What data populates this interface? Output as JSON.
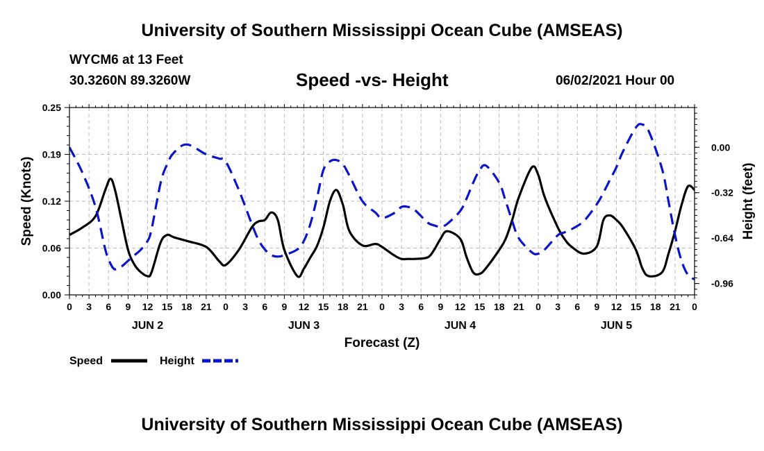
{
  "header": {
    "title": "University of Southern Mississippi Ocean Cube (AMSEAS)",
    "station": "WYCM6 at 13 Feet",
    "coordinates": "30.3260N  89.3260W",
    "subtitle": "Speed -vs- Height",
    "datetime": "06/02/2021 Hour 00"
  },
  "footer": {
    "title": "University of Southern Mississippi Ocean Cube (AMSEAS)"
  },
  "colors": {
    "speed": "#000000",
    "height": "#0a14c8",
    "grid": "#bbbbbb"
  },
  "chart_data": {
    "type": "line",
    "xlabel": "Forecast (Z)",
    "ylabel_left": "Speed (Knots)",
    "ylabel_right": "Height (feet)",
    "x_range_hours": [
      0,
      96
    ],
    "x_tick_labels": [
      "0",
      "3",
      "6",
      "9",
      "12",
      "15",
      "18",
      "21",
      "0",
      "3",
      "6",
      "9",
      "12",
      "15",
      "18",
      "21",
      "0",
      "3",
      "6",
      "9",
      "12",
      "15",
      "18",
      "21",
      "0",
      "3",
      "6",
      "9",
      "12",
      "15",
      "18",
      "21",
      "0"
    ],
    "day_labels": [
      {
        "label": "JUN 2",
        "hour": 12
      },
      {
        "label": "JUN 3",
        "hour": 36
      },
      {
        "label": "JUN 4",
        "hour": 60
      },
      {
        "label": "JUN 5",
        "hour": 84
      }
    ],
    "y_left_range": [
      0,
      0.25
    ],
    "y_left_ticks": [
      "0.25",
      "0.19",
      "0.12",
      "0.06",
      "0.00"
    ],
    "y_right_range": [
      -1.04,
      0.28
    ],
    "y_right_ticks": [
      "0.00",
      "-0.32",
      "-0.64",
      "-0.96"
    ],
    "grid": true,
    "legend": [
      {
        "name": "Speed",
        "style": "solid"
      },
      {
        "name": "Height",
        "style": "dashed"
      }
    ],
    "series": [
      {
        "name": "Speed",
        "axis": "left",
        "x": [
          0,
          2,
          4,
          5.5,
          6.3,
          7,
          8,
          9,
          10,
          11,
          12,
          12.6,
          14,
          15,
          16,
          18,
          21,
          23,
          24,
          26,
          28,
          29,
          30,
          31,
          32,
          33,
          35,
          36,
          37,
          38,
          39,
          40,
          41,
          42,
          43,
          45,
          47,
          48,
          50,
          51,
          52,
          53,
          55,
          56,
          57,
          58,
          60,
          61,
          62,
          63,
          64,
          66,
          67,
          68,
          69,
          71,
          72,
          73,
          75,
          76,
          77,
          79,
          81,
          82,
          83,
          84,
          85,
          87,
          88,
          89,
          91,
          92,
          93,
          94,
          95,
          96
        ],
        "values": [
          0.08,
          0.09,
          0.105,
          0.14,
          0.155,
          0.14,
          0.1,
          0.06,
          0.04,
          0.03,
          0.025,
          0.03,
          0.07,
          0.08,
          0.077,
          0.072,
          0.064,
          0.045,
          0.04,
          0.06,
          0.09,
          0.098,
          0.1,
          0.11,
          0.1,
          0.06,
          0.025,
          0.035,
          0.05,
          0.065,
          0.09,
          0.125,
          0.14,
          0.12,
          0.085,
          0.066,
          0.068,
          0.064,
          0.052,
          0.048,
          0.048,
          0.048,
          0.05,
          0.06,
          0.075,
          0.085,
          0.075,
          0.05,
          0.03,
          0.028,
          0.036,
          0.06,
          0.075,
          0.1,
          0.13,
          0.17,
          0.16,
          0.13,
          0.09,
          0.075,
          0.065,
          0.055,
          0.065,
          0.1,
          0.106,
          0.1,
          0.09,
          0.06,
          0.035,
          0.025,
          0.03,
          0.055,
          0.085,
          0.12,
          0.145,
          0.14
        ]
      },
      {
        "name": "Height",
        "axis": "right",
        "x": [
          0,
          2,
          4,
          5.5,
          6.3,
          7,
          8,
          9,
          10,
          11,
          12,
          12.6,
          14,
          15,
          16,
          18,
          21,
          23,
          24,
          26,
          28,
          29,
          30,
          31,
          32,
          33,
          35,
          36,
          37,
          38,
          39,
          40,
          41,
          42,
          43,
          45,
          47,
          48,
          50,
          51,
          52,
          53,
          55,
          56,
          57,
          58,
          60,
          61,
          62,
          63,
          64,
          66,
          67,
          68,
          69,
          71,
          72,
          73,
          75,
          76,
          77,
          79,
          81,
          82,
          83,
          84,
          85,
          87,
          88,
          89,
          91,
          92,
          93,
          94,
          95,
          96
        ],
        "values": [
          0.0,
          -0.18,
          -0.42,
          -0.72,
          -0.82,
          -0.86,
          -0.84,
          -0.8,
          -0.76,
          -0.72,
          -0.66,
          -0.58,
          -0.25,
          -0.12,
          -0.04,
          0.02,
          -0.05,
          -0.08,
          -0.1,
          -0.3,
          -0.54,
          -0.65,
          -0.72,
          -0.76,
          -0.77,
          -0.76,
          -0.72,
          -0.66,
          -0.54,
          -0.36,
          -0.16,
          -0.1,
          -0.09,
          -0.12,
          -0.2,
          -0.38,
          -0.46,
          -0.5,
          -0.46,
          -0.42,
          -0.42,
          -0.44,
          -0.53,
          -0.55,
          -0.56,
          -0.54,
          -0.45,
          -0.36,
          -0.25,
          -0.16,
          -0.13,
          -0.25,
          -0.38,
          -0.52,
          -0.64,
          -0.74,
          -0.75,
          -0.72,
          -0.62,
          -0.6,
          -0.58,
          -0.52,
          -0.4,
          -0.32,
          -0.23,
          -0.14,
          -0.03,
          0.14,
          0.16,
          0.11,
          -0.15,
          -0.38,
          -0.62,
          -0.8,
          -0.9,
          -0.93
        ]
      }
    ]
  }
}
